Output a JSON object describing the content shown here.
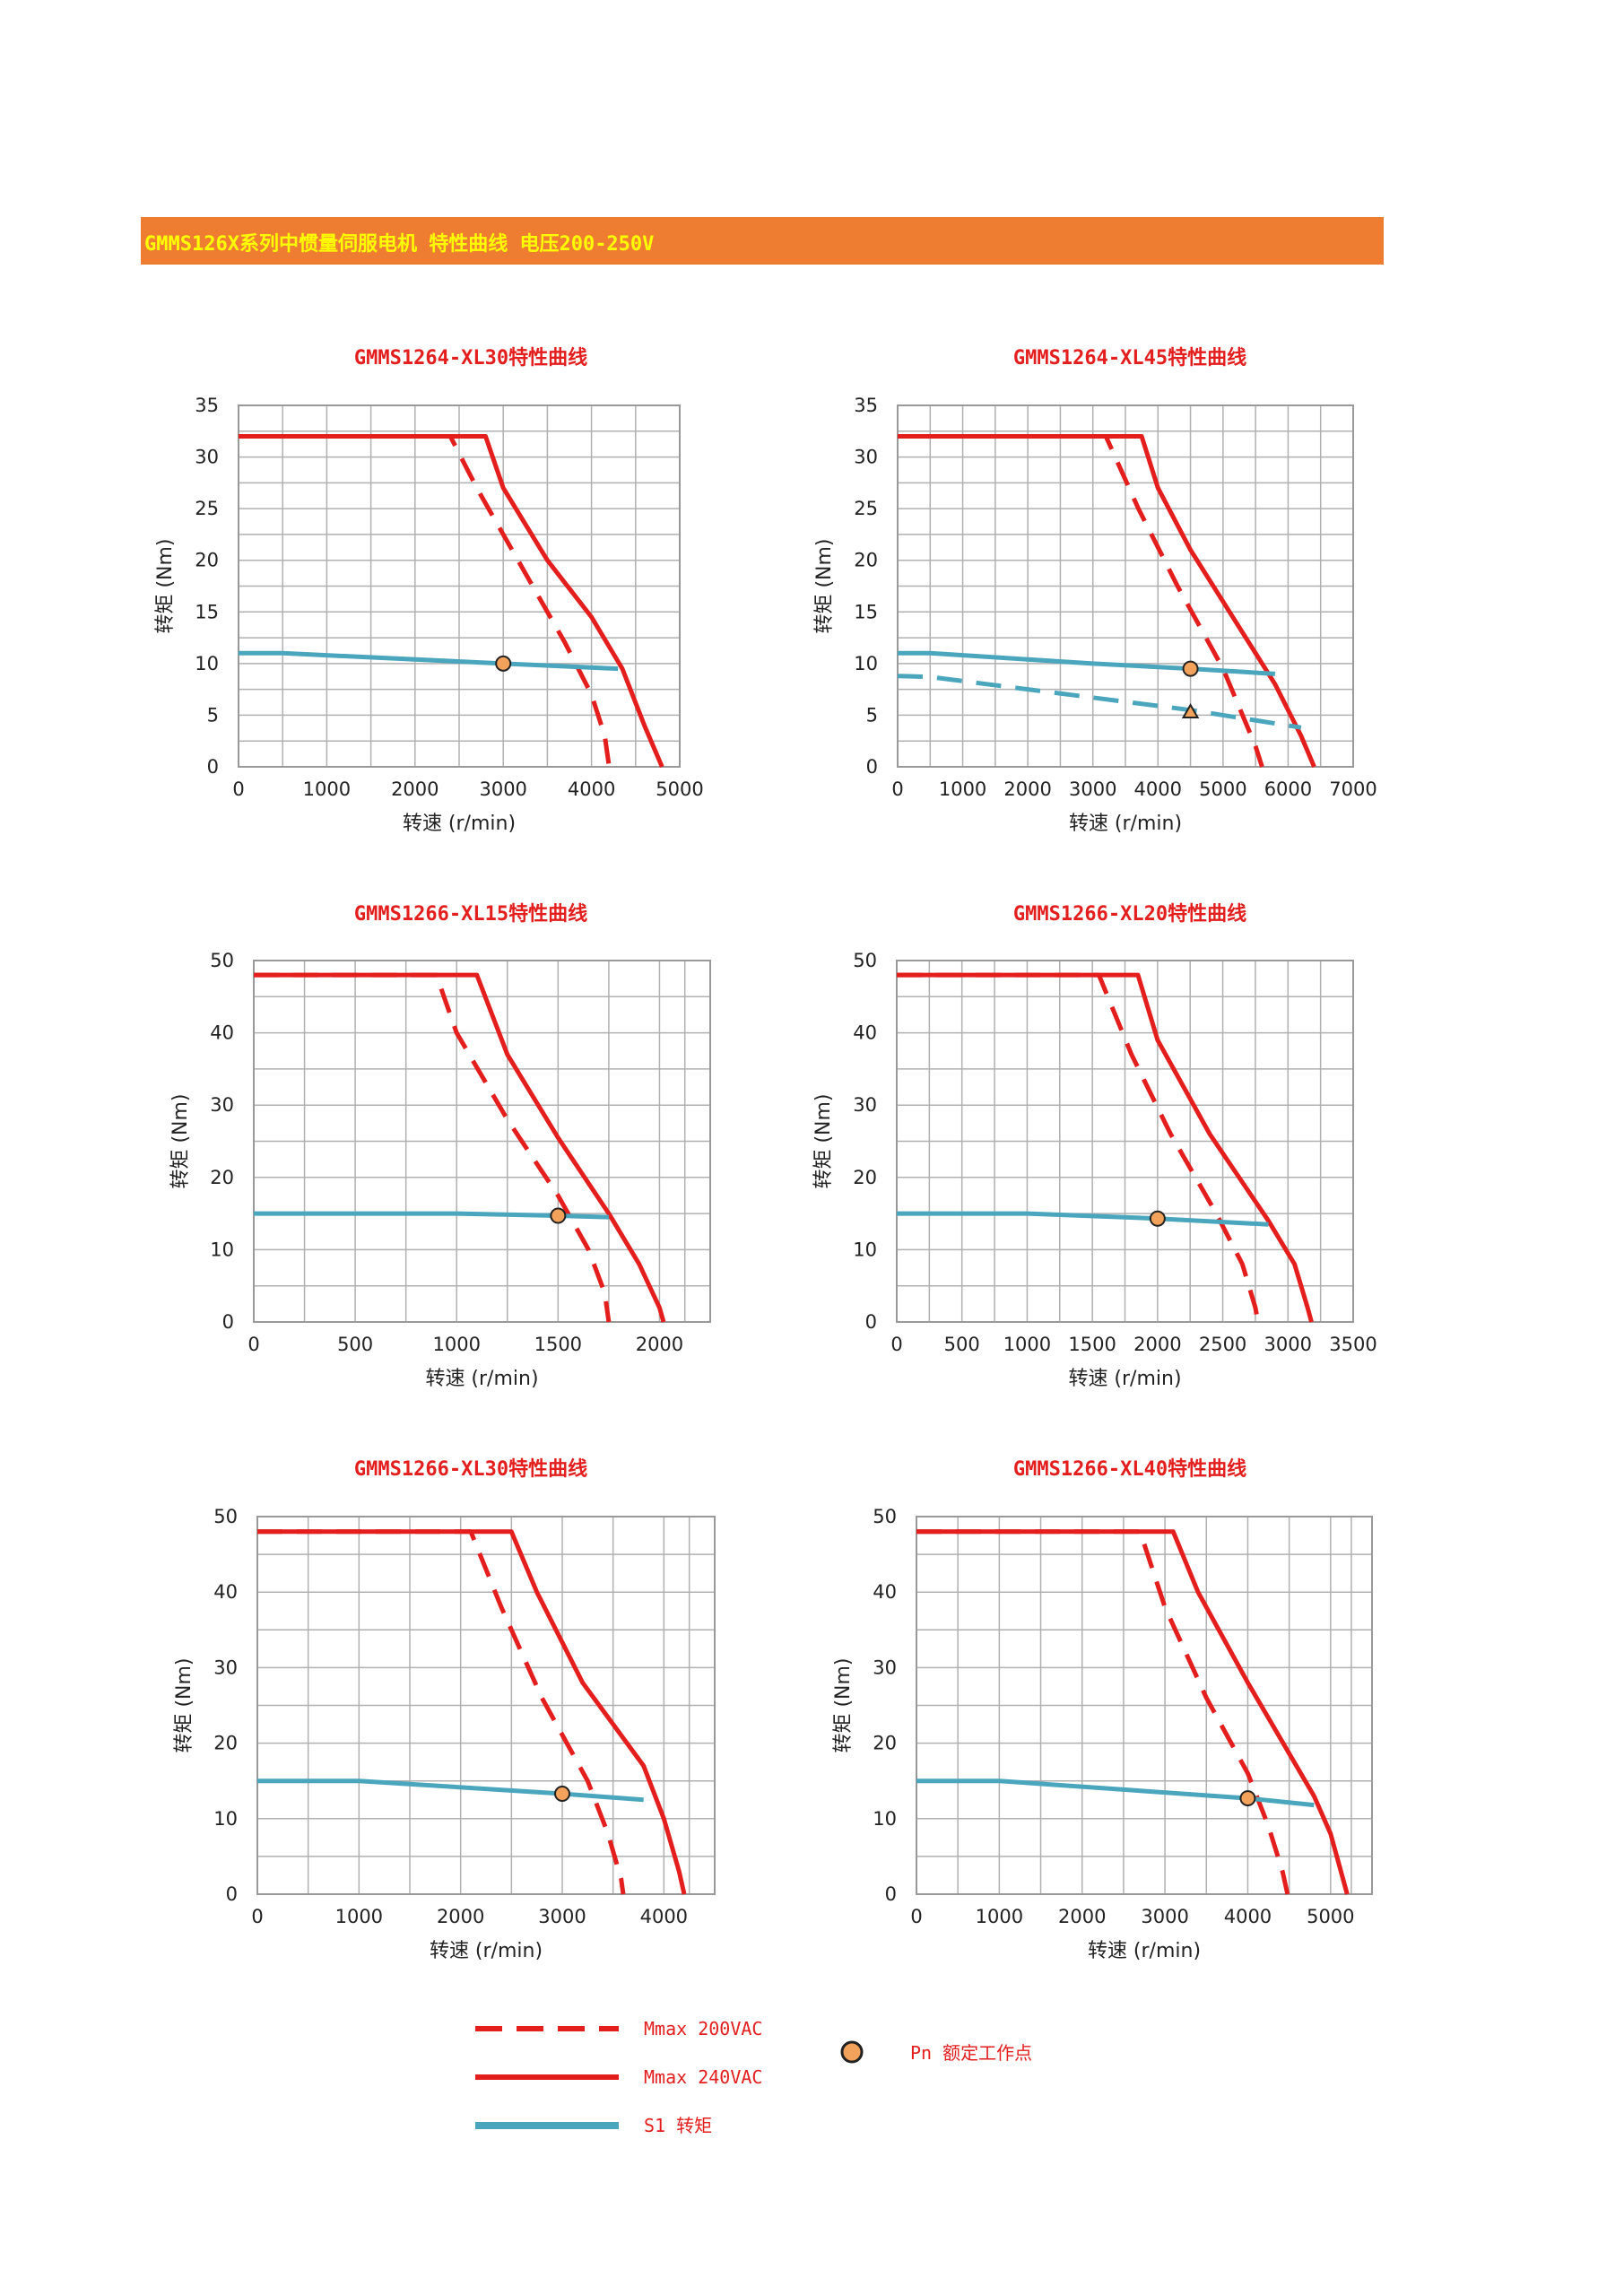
{
  "banner": {
    "title": "GMMS126X系列中惯量伺服电机 特性曲线 电压200-250V",
    "bg_color": "#ef7d31",
    "text_color": "#ffff00"
  },
  "colors": {
    "mmax200": "#e41d1d",
    "mmax240": "#e41d1d",
    "s1": "#4aa6bd",
    "title": "#e41d1d",
    "grid": "#b0b0b0",
    "point": "#f2a25a"
  },
  "legend": {
    "mmax200": "Mmax 200VAC",
    "mmax240": "Mmax 240VAC",
    "s1": "S1 转矩",
    "pn": "Pn 额定工作点"
  },
  "chart_data": [
    {
      "type": "line",
      "title": "GMMS1264-XL30特性曲线",
      "xlabel": "转速 (r/min)",
      "ylabel": "转矩 (Nm)",
      "xlim": [
        0,
        5000
      ],
      "ylim": [
        0,
        35
      ],
      "xticks": [
        0,
        1000,
        2000,
        3000,
        4000,
        5000
      ],
      "yticks": [
        0,
        5,
        10,
        15,
        20,
        25,
        30,
        35
      ],
      "series": [
        {
          "name": "Mmax 200VAC",
          "style": "dashed",
          "points": [
            [
              0,
              32
            ],
            [
              2400,
              32
            ],
            [
              2700,
              27
            ],
            [
              3200,
              19.5
            ],
            [
              3700,
              12
            ],
            [
              4000,
              7
            ],
            [
              4150,
              3
            ],
            [
              4200,
              0
            ]
          ]
        },
        {
          "name": "Mmax 240VAC",
          "style": "solid",
          "points": [
            [
              0,
              32
            ],
            [
              2800,
              32
            ],
            [
              3000,
              27
            ],
            [
              3500,
              20
            ],
            [
              4000,
              14.5
            ],
            [
              4350,
              9.5
            ],
            [
              4600,
              4
            ],
            [
              4800,
              0
            ]
          ]
        },
        {
          "name": "S1 转矩",
          "style": "solid",
          "points": [
            [
              0,
              11
            ],
            [
              500,
              11
            ],
            [
              3000,
              10
            ],
            [
              4300,
              9.5
            ]
          ]
        }
      ],
      "rated_point": [
        3000,
        10
      ]
    },
    {
      "type": "line",
      "title": "GMMS1264-XL45特性曲线",
      "xlabel": "转速 (r/min)",
      "ylabel": "转矩 (Nm)",
      "xlim": [
        0,
        7000
      ],
      "ylim": [
        0,
        35
      ],
      "xticks": [
        0,
        1000,
        2000,
        3000,
        4000,
        5000,
        6000,
        7000
      ],
      "yticks": [
        0,
        5,
        10,
        15,
        20,
        25,
        30,
        35
      ],
      "series": [
        {
          "name": "Mmax 200VAC",
          "style": "dashed",
          "points": [
            [
              0,
              32
            ],
            [
              3200,
              32
            ],
            [
              3700,
              25
            ],
            [
              4300,
              17.5
            ],
            [
              5000,
              9.5
            ],
            [
              5300,
              5
            ],
            [
              5500,
              2
            ],
            [
              5600,
              0
            ]
          ]
        },
        {
          "name": "Mmax 240VAC",
          "style": "solid",
          "points": [
            [
              0,
              32
            ],
            [
              3750,
              32
            ],
            [
              4000,
              27
            ],
            [
              4500,
              21
            ],
            [
              5200,
              14
            ],
            [
              5800,
              8
            ],
            [
              6200,
              3
            ],
            [
              6400,
              0
            ]
          ]
        },
        {
          "name": "S1 转矩",
          "style": "solid",
          "points": [
            [
              0,
              11
            ],
            [
              500,
              11
            ],
            [
              3000,
              10
            ],
            [
              4500,
              9.5
            ],
            [
              5800,
              9
            ]
          ]
        },
        {
          "name": "S1 转矩 (dashed)",
          "style": "dashed",
          "points": [
            [
              0,
              8.8
            ],
            [
              500,
              8.7
            ],
            [
              2000,
              7.5
            ],
            [
              4500,
              5.5
            ],
            [
              6200,
              3.8
            ]
          ]
        }
      ],
      "rated_point": [
        4500,
        9.5
      ],
      "rated_point_2": [
        4500,
        5.3
      ]
    },
    {
      "type": "line",
      "title": "GMMS1266-XL15特性曲线",
      "xlabel": "转速 (r/min)",
      "ylabel": "转矩 (Nm)",
      "xlim": [
        0,
        2250
      ],
      "ylim": [
        0,
        50
      ],
      "xticks": [
        0,
        500,
        1000,
        1500,
        2000
      ],
      "yticks": [
        0,
        10,
        20,
        30,
        40,
        50
      ],
      "series": [
        {
          "name": "Mmax 200VAC",
          "style": "dashed",
          "points": [
            [
              0,
              48
            ],
            [
              900,
              48
            ],
            [
              1000,
              40
            ],
            [
              1250,
              28
            ],
            [
              1500,
              17.5
            ],
            [
              1650,
              10
            ],
            [
              1730,
              4
            ],
            [
              1750,
              0
            ]
          ]
        },
        {
          "name": "Mmax 240VAC",
          "style": "solid",
          "points": [
            [
              0,
              48
            ],
            [
              1100,
              48
            ],
            [
              1250,
              37
            ],
            [
              1500,
              25.5
            ],
            [
              1750,
              15
            ],
            [
              1900,
              8
            ],
            [
              2000,
              2
            ],
            [
              2020,
              0
            ]
          ]
        },
        {
          "name": "S1 转矩",
          "style": "solid",
          "points": [
            [
              0,
              15
            ],
            [
              1000,
              15
            ],
            [
              1500,
              14.7
            ],
            [
              1750,
              14.5
            ]
          ]
        }
      ],
      "rated_point": [
        1500,
        14.7
      ]
    },
    {
      "type": "line",
      "title": "GMMS1266-XL20特性曲线",
      "xlabel": "转速 (r/min)",
      "ylabel": "转矩 (Nm)",
      "xlim": [
        0,
        3500
      ],
      "ylim": [
        0,
        50
      ],
      "xticks": [
        0,
        500,
        1000,
        1500,
        2000,
        2500,
        3000,
        3500
      ],
      "yticks": [
        0,
        10,
        20,
        30,
        40,
        50
      ],
      "series": [
        {
          "name": "Mmax 200VAC",
          "style": "dashed",
          "points": [
            [
              0,
              48
            ],
            [
              1550,
              48
            ],
            [
              1800,
              37
            ],
            [
              2100,
              26
            ],
            [
              2450,
              15
            ],
            [
              2650,
              8
            ],
            [
              2750,
              2
            ],
            [
              2770,
              0
            ]
          ]
        },
        {
          "name": "Mmax 240VAC",
          "style": "solid",
          "points": [
            [
              0,
              48
            ],
            [
              1850,
              48
            ],
            [
              2000,
              39
            ],
            [
              2400,
              26
            ],
            [
              2850,
              14
            ],
            [
              3050,
              8
            ],
            [
              3150,
              2
            ],
            [
              3180,
              0
            ]
          ]
        },
        {
          "name": "S1 转矩",
          "style": "solid",
          "points": [
            [
              0,
              15
            ],
            [
              1000,
              15
            ],
            [
              2000,
              14.3
            ],
            [
              2850,
              13.5
            ]
          ]
        }
      ],
      "rated_point": [
        2000,
        14.3
      ]
    },
    {
      "type": "line",
      "title": "GMMS1266-XL30特性曲线",
      "xlabel": "转速 (r/min)",
      "ylabel": "转矩 (Nm)",
      "xlim": [
        0,
        4500
      ],
      "ylim": [
        0,
        50
      ],
      "xticks": [
        0,
        1000,
        2000,
        3000,
        4000
      ],
      "yticks": [
        0,
        10,
        20,
        30,
        40,
        50
      ],
      "series": [
        {
          "name": "Mmax 200VAC",
          "style": "dashed",
          "points": [
            [
              0,
              48
            ],
            [
              2100,
              48
            ],
            [
              2400,
              38
            ],
            [
              2800,
              26
            ],
            [
              3250,
              15
            ],
            [
              3450,
              8
            ],
            [
              3580,
              2
            ],
            [
              3600,
              0
            ]
          ]
        },
        {
          "name": "Mmax 240VAC",
          "style": "solid",
          "points": [
            [
              0,
              48
            ],
            [
              2500,
              48
            ],
            [
              2750,
              40
            ],
            [
              3200,
              28
            ],
            [
              3800,
              17
            ],
            [
              4000,
              10
            ],
            [
              4150,
              3
            ],
            [
              4200,
              0
            ]
          ]
        },
        {
          "name": "S1 转矩",
          "style": "solid",
          "points": [
            [
              0,
              15
            ],
            [
              1000,
              15
            ],
            [
              3000,
              13.3
            ],
            [
              3800,
              12.5
            ]
          ]
        }
      ],
      "rated_point": [
        3000,
        13.3
      ]
    },
    {
      "type": "line",
      "title": "GMMS1266-XL40特性曲线",
      "xlabel": "转速 (r/min)",
      "ylabel": "转矩 (Nm)",
      "xlim": [
        0,
        5500
      ],
      "ylim": [
        0,
        50
      ],
      "xticks": [
        0,
        1000,
        2000,
        3000,
        4000,
        5000
      ],
      "yticks": [
        0,
        10,
        20,
        30,
        40,
        50
      ],
      "series": [
        {
          "name": "Mmax 200VAC",
          "style": "dashed",
          "points": [
            [
              0,
              48
            ],
            [
              2700,
              48
            ],
            [
              3000,
              38
            ],
            [
              3500,
              26
            ],
            [
              4000,
              16
            ],
            [
              4250,
              9
            ],
            [
              4420,
              3
            ],
            [
              4480,
              0
            ]
          ]
        },
        {
          "name": "Mmax 240VAC",
          "style": "solid",
          "points": [
            [
              0,
              48
            ],
            [
              3100,
              48
            ],
            [
              3400,
              40
            ],
            [
              4000,
              28
            ],
            [
              4800,
              13
            ],
            [
              5000,
              8
            ],
            [
              5150,
              2
            ],
            [
              5200,
              0
            ]
          ]
        },
        {
          "name": "S1 转矩",
          "style": "solid",
          "points": [
            [
              0,
              15
            ],
            [
              1000,
              15
            ],
            [
              4000,
              12.7
            ],
            [
              4800,
              11.8
            ]
          ]
        }
      ],
      "rated_point": [
        4000,
        12.7
      ]
    }
  ]
}
